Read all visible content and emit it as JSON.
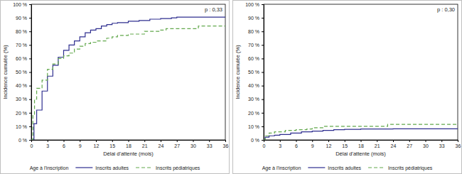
{
  "chart_data": [
    {
      "type": "line",
      "x_label": "Délai d'attente (mois)",
      "y_label": "Incidence cumulée (%)",
      "annotations": [
        "p : 0,33"
      ],
      "legend": "bottom",
      "legend_title": "Age à l'inscription",
      "grid": false,
      "xlim": [
        0,
        36
      ],
      "xticks": [
        0,
        3,
        6,
        9,
        12,
        15,
        18,
        21,
        24,
        27,
        30,
        33,
        36
      ],
      "ylim": [
        0,
        100
      ],
      "yticks": [
        {
          "value": 0,
          "label": "0 %"
        },
        {
          "value": 10,
          "label": "10 %"
        },
        {
          "value": 20,
          "label": "20 %"
        },
        {
          "value": 30,
          "label": "30 %"
        },
        {
          "value": 40,
          "label": "40 %"
        },
        {
          "value": 50,
          "label": "50 %"
        },
        {
          "value": 60,
          "label": "60 %"
        },
        {
          "value": 70,
          "label": "70 %"
        },
        {
          "value": 80,
          "label": "80 %"
        },
        {
          "value": 90,
          "label": "90 %"
        },
        {
          "value": 100,
          "label": "100 %"
        }
      ],
      "series": [
        {
          "name": "Inscrits adultes",
          "color": "#2e2e8f",
          "line_style": "solid",
          "x": [
            0,
            0.5,
            1,
            2,
            3,
            4,
            5,
            6,
            7,
            8,
            9,
            10,
            11,
            12,
            13,
            14,
            15,
            16,
            18,
            20,
            22,
            24,
            26,
            27,
            30,
            33,
            36
          ],
          "values": [
            0,
            12,
            22,
            36,
            47,
            55,
            61,
            66,
            70,
            73,
            76,
            79,
            81,
            82,
            84,
            85,
            86,
            86.5,
            87.5,
            88,
            89,
            89.5,
            90,
            90.5,
            90.5,
            90.5,
            90.5
          ]
        },
        {
          "name": "Inscrits pédiatriques",
          "color": "#62a84c",
          "line_style": "dashed",
          "x": [
            0,
            0.3,
            0.6,
            1,
            2,
            3,
            4,
            5,
            6,
            7,
            8,
            9,
            10,
            11,
            12,
            14,
            15,
            16,
            18,
            21,
            22,
            24,
            25,
            30,
            31,
            36
          ],
          "values": [
            0,
            18,
            30,
            38,
            44,
            52,
            56,
            60,
            62,
            64,
            67,
            69,
            71,
            72,
            73,
            75,
            76,
            77,
            78,
            80,
            80,
            81,
            82,
            82,
            84,
            84
          ]
        }
      ]
    },
    {
      "type": "line",
      "x_label": "Délai d'attente (mois)",
      "y_label": "Incidence cumulée (%)",
      "annotations": [
        "p : 0,30"
      ],
      "legend": "bottom",
      "legend_title": "Age à l'inscription",
      "grid": false,
      "xlim": [
        0,
        36
      ],
      "xticks": [
        0,
        3,
        6,
        9,
        12,
        15,
        18,
        21,
        24,
        27,
        30,
        33,
        36
      ],
      "ylim": [
        0,
        100
      ],
      "yticks": [
        {
          "value": 0,
          "label": "0 %"
        },
        {
          "value": 10,
          "label": "10 %"
        },
        {
          "value": 20,
          "label": "20 %"
        },
        {
          "value": 30,
          "label": "30 %"
        },
        {
          "value": 40,
          "label": "40 %"
        },
        {
          "value": 50,
          "label": "50 %"
        },
        {
          "value": 60,
          "label": "60 %"
        },
        {
          "value": 70,
          "label": "70 %"
        },
        {
          "value": 80,
          "label": "80 %"
        },
        {
          "value": 90,
          "label": "90 %"
        },
        {
          "value": 100,
          "label": "100 %"
        }
      ],
      "series": [
        {
          "name": "Inscrits adultes",
          "color": "#2e2e8f",
          "line_style": "solid",
          "x": [
            0,
            0.3,
            1,
            2,
            3,
            5,
            7,
            9,
            11,
            13,
            15,
            18,
            21,
            24,
            27,
            30,
            36
          ],
          "values": [
            0,
            2,
            3,
            3.5,
            4,
            5,
            6,
            6.5,
            7,
            7.5,
            7.8,
            8,
            8,
            8.2,
            8.2,
            8.2,
            8.2
          ]
        },
        {
          "name": "Inscrits pédiatriques",
          "color": "#62a84c",
          "line_style": "dashed",
          "x": [
            0,
            0.3,
            1,
            2,
            4,
            6,
            8,
            9,
            11,
            15,
            23,
            36
          ],
          "values": [
            0,
            3,
            5,
            6,
            7,
            7.5,
            8,
            9,
            10,
            10,
            11.5,
            11.5
          ]
        }
      ]
    }
  ]
}
